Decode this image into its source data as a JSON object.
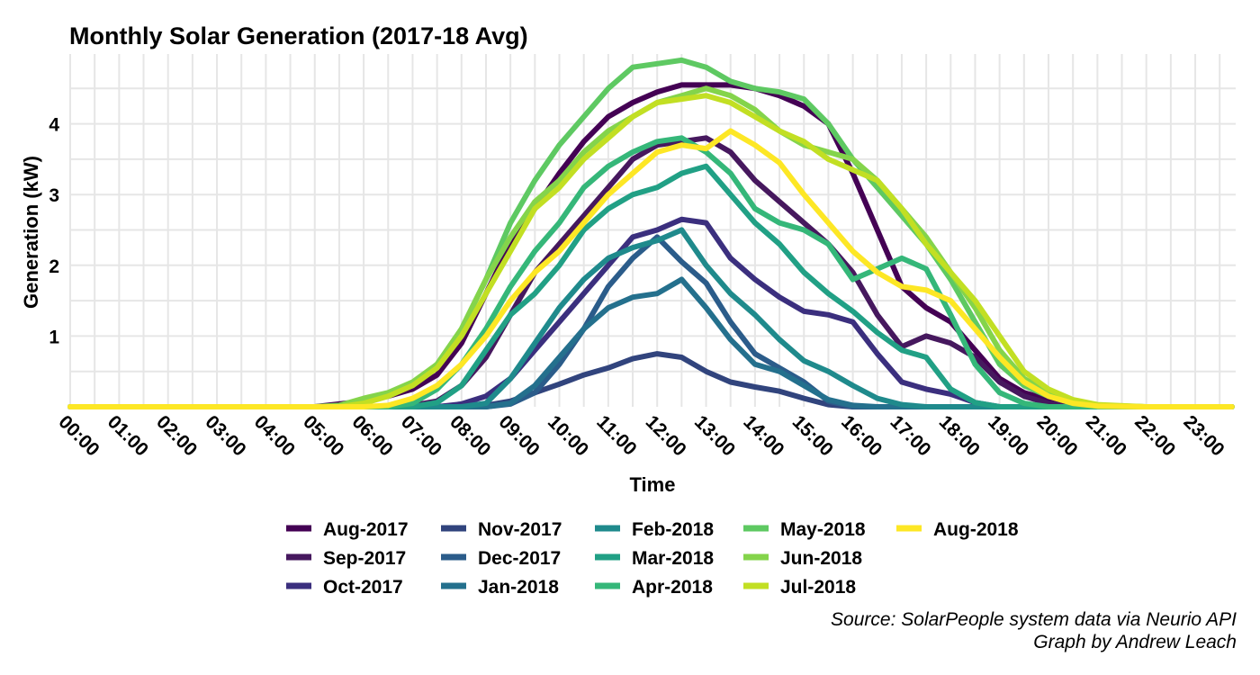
{
  "chart_data": {
    "type": "line",
    "title": "Monthly Solar Generation (2017-18 Avg)",
    "xlabel": "Time",
    "ylabel": "Generation (kW)",
    "x_ticks": [
      "00:00",
      "01:00",
      "02:00",
      "03:00",
      "04:00",
      "05:00",
      "06:00",
      "07:00",
      "08:00",
      "09:00",
      "10:00",
      "11:00",
      "12:00",
      "13:00",
      "14:00",
      "15:00",
      "16:00",
      "17:00",
      "18:00",
      "19:00",
      "20:00",
      "21:00",
      "22:00",
      "23:00"
    ],
    "y_ticks": [
      1,
      2,
      3,
      4
    ],
    "xlim": [
      0,
      23.75
    ],
    "ylim": [
      0,
      5
    ],
    "grid": true,
    "legend_position": "bottom",
    "series": [
      {
        "name": "Aug-2017",
        "color": "#440154",
        "x": [
          0,
          5,
          6,
          6.5,
          7,
          7.5,
          8,
          8.5,
          9,
          9.5,
          10,
          10.5,
          11,
          11.5,
          12,
          12.5,
          13,
          13.5,
          14,
          14.5,
          15,
          15.5,
          16,
          16.5,
          17,
          17.5,
          18,
          18.5,
          19,
          19.5,
          20,
          20.5,
          21,
          22,
          23.75
        ],
        "y": [
          0,
          0,
          0.08,
          0.15,
          0.25,
          0.45,
          0.9,
          1.6,
          2.3,
          2.8,
          3.3,
          3.75,
          4.1,
          4.3,
          4.45,
          4.55,
          4.55,
          4.55,
          4.5,
          4.4,
          4.25,
          4.0,
          3.3,
          2.5,
          1.7,
          1.4,
          1.2,
          0.8,
          0.4,
          0.2,
          0.1,
          0.04,
          0,
          0,
          0
        ]
      },
      {
        "name": "Sep-2017",
        "color": "#46185e",
        "x": [
          0,
          6,
          7,
          7.5,
          8,
          8.5,
          9,
          9.5,
          10,
          10.5,
          11,
          11.5,
          12,
          12.5,
          13,
          13.5,
          14,
          14.5,
          15,
          15.5,
          16,
          16.5,
          17,
          17.5,
          18,
          18.5,
          19,
          19.5,
          20,
          20.5,
          21,
          23.75
        ],
        "y": [
          0,
          0,
          0.02,
          0.08,
          0.3,
          0.7,
          1.3,
          1.9,
          2.3,
          2.7,
          3.1,
          3.5,
          3.7,
          3.75,
          3.8,
          3.6,
          3.2,
          2.9,
          2.6,
          2.3,
          1.9,
          1.3,
          0.85,
          1.0,
          0.9,
          0.7,
          0.35,
          0.15,
          0.05,
          0.01,
          0,
          0
        ]
      },
      {
        "name": "Oct-2017",
        "color": "#3b2f7e",
        "x": [
          0,
          7.5,
          8,
          8.5,
          9,
          9.5,
          10,
          10.5,
          11,
          11.5,
          12,
          12.5,
          13,
          13.5,
          14,
          14.5,
          15,
          15.5,
          16,
          16.5,
          17,
          17.5,
          18,
          18.5,
          19,
          23.75
        ],
        "y": [
          0,
          0,
          0.04,
          0.15,
          0.4,
          0.8,
          1.2,
          1.6,
          2.0,
          2.4,
          2.5,
          2.65,
          2.6,
          2.1,
          1.8,
          1.55,
          1.35,
          1.3,
          1.2,
          0.75,
          0.35,
          0.25,
          0.18,
          0.06,
          0,
          0
        ]
      },
      {
        "name": "Nov-2017",
        "color": "#31447d",
        "x": [
          0,
          8,
          8.5,
          9,
          9.5,
          10,
          10.5,
          11,
          11.5,
          12,
          12.5,
          13,
          13.5,
          14,
          14.5,
          15,
          15.5,
          16,
          23.75
        ],
        "y": [
          0,
          0,
          0.02,
          0.08,
          0.2,
          0.32,
          0.45,
          0.55,
          0.68,
          0.75,
          0.7,
          0.5,
          0.35,
          0.28,
          0.22,
          0.12,
          0.03,
          0,
          0
        ]
      },
      {
        "name": "Dec-2017",
        "color": "#2b5c8a",
        "x": [
          0,
          8.5,
          9,
          9.5,
          10,
          10.5,
          11,
          11.5,
          12,
          12.5,
          13,
          13.5,
          14,
          14.5,
          15,
          15.5,
          16,
          23.75
        ],
        "y": [
          0,
          0,
          0.04,
          0.2,
          0.6,
          1.1,
          1.7,
          2.1,
          2.4,
          2.05,
          1.75,
          1.2,
          0.75,
          0.55,
          0.35,
          0.08,
          0,
          0
        ]
      },
      {
        "name": "Jan-2018",
        "color": "#24708d",
        "x": [
          0,
          8.5,
          9,
          9.5,
          10,
          10.5,
          11,
          11.5,
          12,
          12.5,
          13,
          13.5,
          14,
          14.5,
          15,
          15.5,
          16,
          16.5,
          23.75
        ],
        "y": [
          0,
          0,
          0.05,
          0.3,
          0.7,
          1.1,
          1.4,
          1.55,
          1.6,
          1.8,
          1.4,
          0.95,
          0.6,
          0.5,
          0.3,
          0.1,
          0.02,
          0,
          0
        ]
      },
      {
        "name": "Feb-2018",
        "color": "#1f8a8c",
        "x": [
          0,
          8,
          8.5,
          9,
          9.5,
          10,
          10.5,
          11,
          11.5,
          12,
          12.5,
          13,
          13.5,
          14,
          14.5,
          15,
          15.5,
          16,
          16.5,
          17,
          17.5,
          18,
          23.75
        ],
        "y": [
          0,
          0,
          0.05,
          0.4,
          0.9,
          1.4,
          1.8,
          2.1,
          2.25,
          2.35,
          2.5,
          2.0,
          1.6,
          1.3,
          0.95,
          0.65,
          0.5,
          0.3,
          0.12,
          0.03,
          0,
          0,
          0
        ]
      },
      {
        "name": "Mar-2018",
        "color": "#21a085",
        "x": [
          0,
          7,
          7.5,
          8,
          8.5,
          9,
          9.5,
          10,
          10.5,
          11,
          11.5,
          12,
          12.5,
          13,
          13.5,
          14,
          14.5,
          15,
          15.5,
          16,
          16.5,
          17,
          17.5,
          18,
          18.5,
          19,
          23.75
        ],
        "y": [
          0,
          0,
          0.06,
          0.3,
          0.8,
          1.3,
          1.6,
          2.0,
          2.5,
          2.8,
          3.0,
          3.1,
          3.3,
          3.4,
          3.0,
          2.6,
          2.3,
          1.9,
          1.6,
          1.35,
          1.05,
          0.8,
          0.7,
          0.25,
          0.06,
          0,
          0
        ]
      },
      {
        "name": "Apr-2018",
        "color": "#35b779",
        "x": [
          0,
          6.5,
          7,
          7.5,
          8,
          8.5,
          9,
          9.5,
          10,
          10.5,
          11,
          11.5,
          12,
          12.5,
          13,
          13.5,
          14,
          14.5,
          15,
          15.5,
          16,
          16.5,
          17,
          17.5,
          18,
          18.5,
          19,
          19.5,
          20,
          23.75
        ],
        "y": [
          0,
          0,
          0.05,
          0.25,
          0.6,
          1.1,
          1.7,
          2.2,
          2.6,
          3.1,
          3.4,
          3.6,
          3.75,
          3.8,
          3.6,
          3.3,
          2.8,
          2.6,
          2.5,
          2.3,
          1.8,
          1.95,
          2.1,
          1.95,
          1.3,
          0.6,
          0.2,
          0.05,
          0,
          0
        ]
      },
      {
        "name": "May-2018",
        "color": "#5ec962",
        "x": [
          0,
          5.5,
          6,
          6.5,
          7,
          7.5,
          8,
          8.5,
          9,
          9.5,
          10,
          10.5,
          11,
          11.5,
          12,
          12.5,
          13,
          13.5,
          14,
          14.5,
          15,
          15.5,
          16,
          16.5,
          17,
          17.5,
          18,
          18.5,
          19,
          19.5,
          20,
          20.5,
          21,
          22,
          23.75
        ],
        "y": [
          0,
          0,
          0.08,
          0.18,
          0.3,
          0.6,
          1.1,
          1.8,
          2.6,
          3.2,
          3.7,
          4.1,
          4.5,
          4.8,
          4.85,
          4.9,
          4.8,
          4.6,
          4.5,
          4.45,
          4.35,
          4.0,
          3.5,
          3.1,
          2.7,
          2.3,
          1.8,
          1.2,
          0.6,
          0.3,
          0.15,
          0.05,
          0.01,
          0,
          0
        ]
      },
      {
        "name": "Jun-2018",
        "color": "#84d44b",
        "x": [
          0,
          5,
          5.5,
          6,
          6.5,
          7,
          7.5,
          8,
          8.5,
          9,
          9.5,
          10,
          10.5,
          11,
          11.5,
          12,
          12.5,
          13,
          13.5,
          14,
          14.5,
          15,
          15.5,
          16,
          16.5,
          17,
          17.5,
          18,
          18.5,
          19,
          19.5,
          20,
          20.5,
          21,
          22,
          23.75
        ],
        "y": [
          0,
          0,
          0.02,
          0.12,
          0.2,
          0.35,
          0.6,
          1.1,
          1.8,
          2.4,
          2.9,
          3.2,
          3.6,
          3.9,
          4.1,
          4.3,
          4.4,
          4.5,
          4.4,
          4.2,
          3.9,
          3.7,
          3.6,
          3.5,
          3.2,
          2.8,
          2.4,
          1.9,
          1.4,
          0.8,
          0.4,
          0.2,
          0.07,
          0.02,
          0,
          0
        ]
      },
      {
        "name": "Jul-2018",
        "color": "#c2df23",
        "x": [
          0,
          5.5,
          6,
          6.5,
          7,
          7.5,
          8,
          8.5,
          9,
          9.5,
          10,
          10.5,
          11,
          11.5,
          12,
          12.5,
          13,
          13.5,
          14,
          14.5,
          15,
          15.5,
          16,
          16.5,
          17,
          17.5,
          18,
          18.5,
          19,
          19.5,
          20,
          20.5,
          21,
          22,
          23.75
        ],
        "y": [
          0,
          0,
          0.05,
          0.15,
          0.3,
          0.55,
          1.0,
          1.6,
          2.2,
          2.8,
          3.1,
          3.5,
          3.8,
          4.1,
          4.3,
          4.35,
          4.4,
          4.3,
          4.1,
          3.9,
          3.75,
          3.5,
          3.35,
          3.2,
          2.8,
          2.3,
          1.9,
          1.5,
          1.0,
          0.5,
          0.25,
          0.1,
          0.03,
          0,
          0
        ]
      },
      {
        "name": "Aug-2018",
        "color": "#fde725",
        "x": [
          0,
          6,
          6.5,
          7,
          7.5,
          8,
          8.5,
          9,
          9.5,
          10,
          10.5,
          11,
          11.5,
          12,
          12.5,
          13,
          13.5,
          14,
          14.5,
          15,
          15.5,
          16,
          16.5,
          17,
          17.5,
          18,
          18.5,
          19,
          19.5,
          20,
          20.5,
          21,
          22,
          23.75
        ],
        "y": [
          0,
          0,
          0.02,
          0.12,
          0.3,
          0.6,
          1.0,
          1.5,
          1.9,
          2.2,
          2.6,
          3.0,
          3.3,
          3.6,
          3.7,
          3.65,
          3.9,
          3.7,
          3.45,
          3.0,
          2.6,
          2.2,
          1.9,
          1.7,
          1.65,
          1.5,
          1.1,
          0.7,
          0.35,
          0.15,
          0.05,
          0.01,
          0,
          0
        ]
      }
    ]
  },
  "caption": {
    "source": "Source: SolarPeople system data via Neurio API",
    "credit": "Graph by Andrew Leach"
  }
}
